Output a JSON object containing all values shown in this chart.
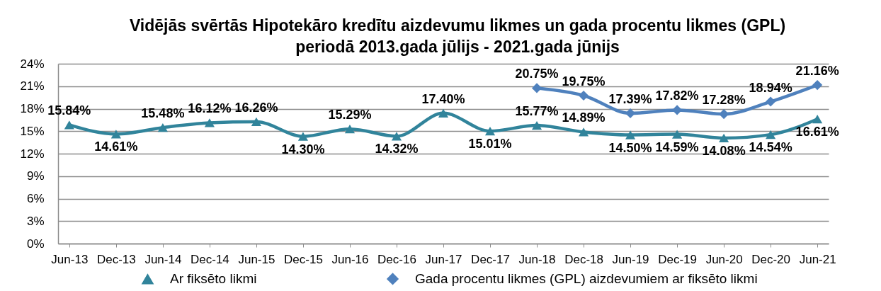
{
  "chart_data": {
    "type": "line",
    "title": "Vidējās svērtās Hipotekāro kredītu aizdevumu likmes un gada procentu likmes (GPL)\nperiodā 2013.gada jūlijs - 2021.gada jūnijs",
    "categories": [
      "Jun-13",
      "Dec-13",
      "Jun-14",
      "Dec-14",
      "Jun-15",
      "Dec-15",
      "Jun-16",
      "Dec-16",
      "Jun-17",
      "Dec-17",
      "Jun-18",
      "Dec-18",
      "Jun-19",
      "Dec-19",
      "Jun-20",
      "Dec-20",
      "Jun-21"
    ],
    "series": [
      {
        "name": "Ar fiksēto likmi",
        "color": "#31849b",
        "marker": "triangle",
        "values": [
          15.84,
          14.61,
          15.48,
          16.12,
          16.26,
          14.3,
          15.29,
          14.32,
          17.4,
          15.01,
          15.77,
          14.89,
          14.5,
          14.59,
          14.08,
          14.54,
          16.61
        ],
        "value_labels": [
          "15.84%",
          "14.61%",
          "15.48%",
          "16.12%",
          "16.26%",
          "14.30%",
          "15.29%",
          "14.32%",
          "17.40%",
          "15.01%",
          "15.77%",
          "14.89%",
          "14.50%",
          "14.59%",
          "14.08%",
          "14.54%",
          "16.61%"
        ]
      },
      {
        "name": "Gada procentu likmes (GPL) aizdevumiem ar fiksēto likmi",
        "color": "#4f81bd",
        "marker": "diamond",
        "values": [
          null,
          null,
          null,
          null,
          null,
          null,
          null,
          null,
          null,
          null,
          20.75,
          19.75,
          17.39,
          17.82,
          17.28,
          18.94,
          21.16
        ],
        "value_labels": [
          null,
          null,
          null,
          null,
          null,
          null,
          null,
          null,
          null,
          null,
          "20.75%",
          "19.75%",
          "17.39%",
          "17.82%",
          "17.28%",
          "18.94%",
          "21.16%"
        ]
      }
    ],
    "ylim": [
      0,
      24
    ],
    "yticks": [
      {
        "value": 0,
        "label": "0%"
      },
      {
        "value": 3,
        "label": "3%"
      },
      {
        "value": 6,
        "label": "6%"
      },
      {
        "value": 9,
        "label": "9%"
      },
      {
        "value": 12,
        "label": "12%"
      },
      {
        "value": 15,
        "label": "15%"
      },
      {
        "value": 18,
        "label": "18%"
      },
      {
        "value": 21,
        "label": "21%"
      },
      {
        "value": 24,
        "label": "24%"
      }
    ],
    "grid": "y",
    "legend": "bottom"
  }
}
